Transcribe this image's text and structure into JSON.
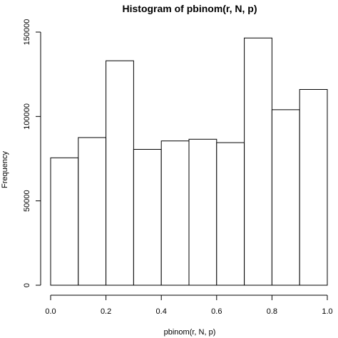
{
  "chart_data": {
    "type": "bar",
    "title": "Histogram of pbinom(r, N, p)",
    "xlabel": "pbinom(r, N, p)",
    "ylabel": "Frequency",
    "bins": [
      {
        "from": 0.0,
        "to": 0.1,
        "count": 75500
      },
      {
        "from": 0.1,
        "to": 0.2,
        "count": 87500
      },
      {
        "from": 0.2,
        "to": 0.3,
        "count": 133000
      },
      {
        "from": 0.3,
        "to": 0.4,
        "count": 80500
      },
      {
        "from": 0.4,
        "to": 0.5,
        "count": 85500
      },
      {
        "from": 0.5,
        "to": 0.6,
        "count": 86500
      },
      {
        "from": 0.6,
        "to": 0.7,
        "count": 84500
      },
      {
        "from": 0.7,
        "to": 0.8,
        "count": 146500
      },
      {
        "from": 0.8,
        "to": 0.9,
        "count": 104000
      },
      {
        "from": 0.9,
        "to": 1.0,
        "count": 116000
      }
    ],
    "xlim": [
      0.0,
      1.0
    ],
    "ylim": [
      0,
      150000
    ],
    "x_ticks": [
      "0.0",
      "0.2",
      "0.4",
      "0.6",
      "0.8",
      "1.0"
    ],
    "y_ticks": [
      "0",
      "50000",
      "100000",
      "150000"
    ],
    "grid": false,
    "legend": "none",
    "bar_fill": "#ffffff",
    "bar_stroke": "#000000"
  }
}
